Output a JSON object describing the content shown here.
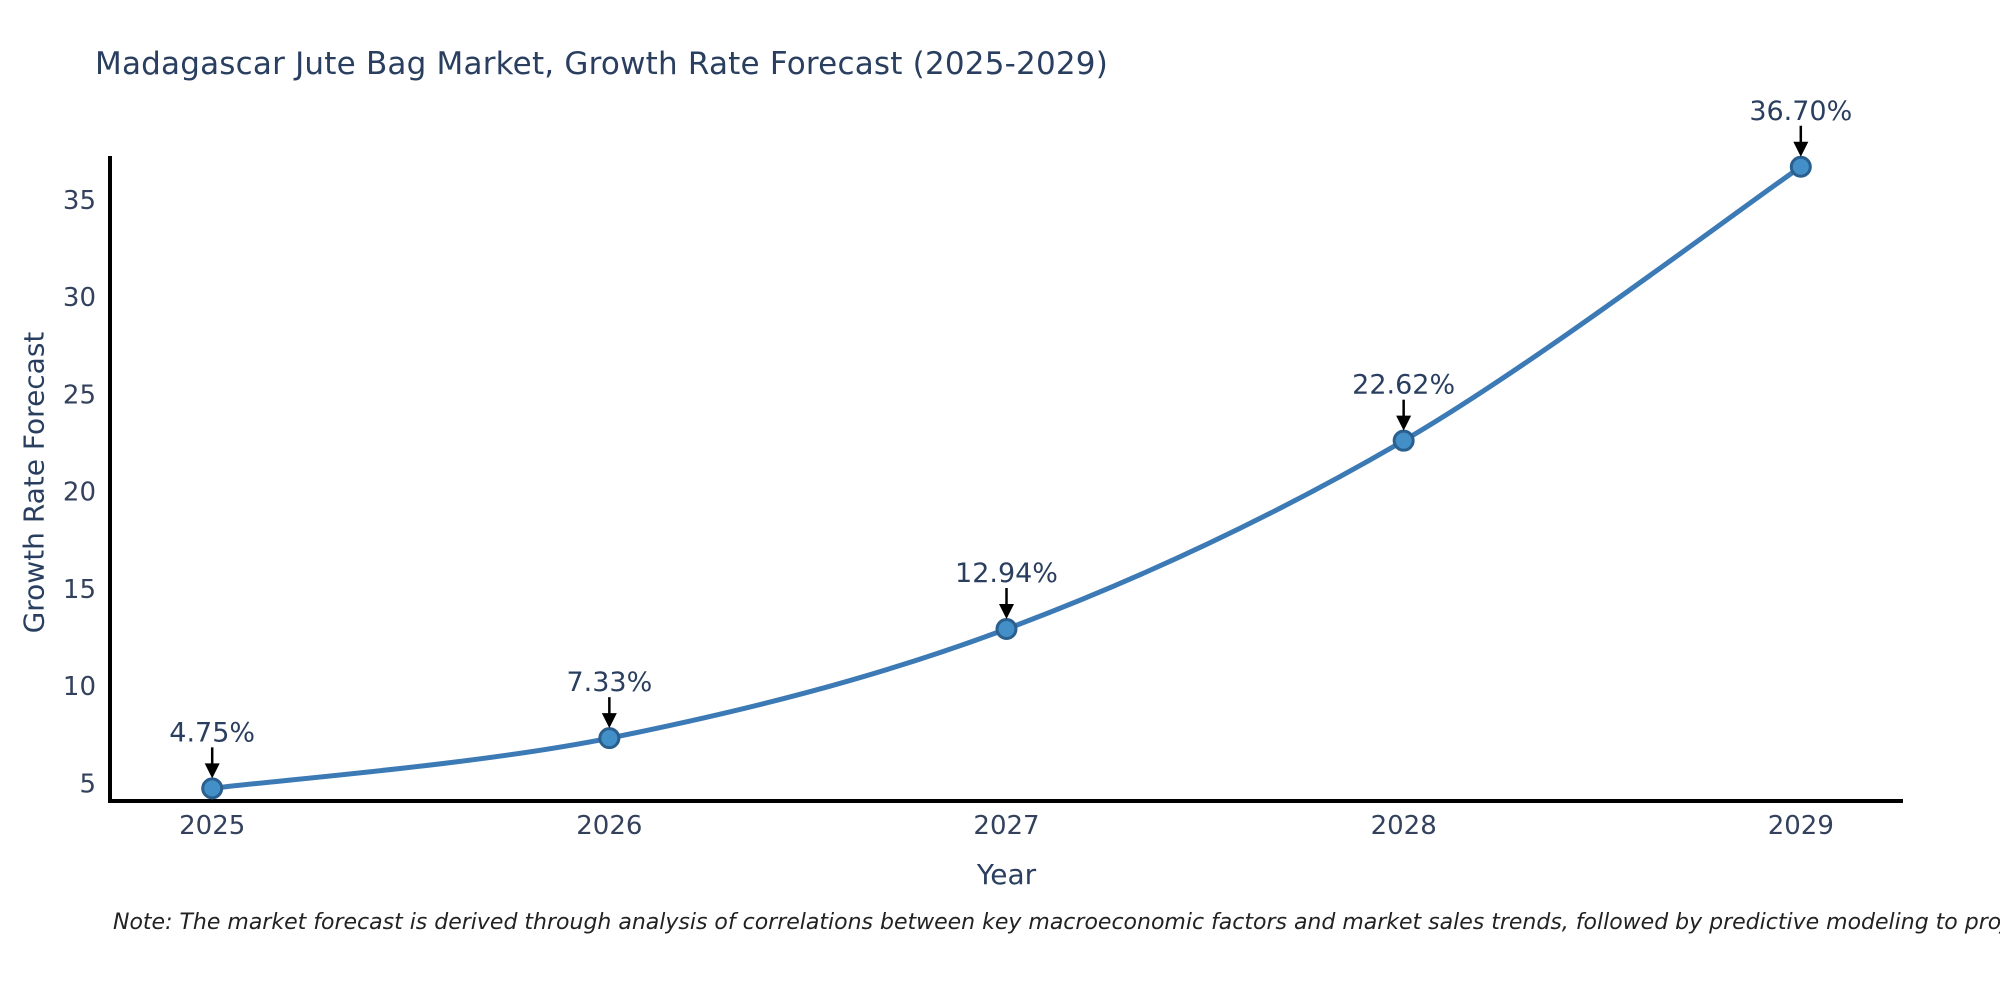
{
  "chart_data": {
    "type": "line",
    "title": "Madagascar Jute Bag Market, Growth Rate Forecast (2025-2029)",
    "xlabel": "Year",
    "ylabel": "Growth Rate Forecast",
    "x": [
      2025,
      2026,
      2027,
      2028,
      2029
    ],
    "series": [
      {
        "name": "Growth Rate Forecast",
        "values": [
          4.75,
          7.33,
          12.94,
          22.62,
          36.7
        ],
        "point_labels": [
          "4.75%",
          "7.33%",
          "12.94%",
          "22.62%",
          "36.70%"
        ]
      }
    ],
    "xticks": [
      "2025",
      "2026",
      "2027",
      "2028",
      "2029"
    ],
    "yticks": [
      5,
      10,
      15,
      20,
      25,
      30,
      35
    ],
    "ylim": [
      4.1,
      37.15
    ],
    "x_padding_frac": 0.057,
    "grid": false,
    "legend_position": "none",
    "line_shape": "spline",
    "colors": {
      "line": "#3c7ab5",
      "marker_fill": "#4390c9",
      "marker_edge": "#2a5f8e",
      "axis": "#000000",
      "tick_text": "#33415c",
      "title_text": "#2a3f5f",
      "annotation_text": "#2a3f5f",
      "arrow": "#000000"
    },
    "note": "Note: The market forecast is derived through analysis of correlations between key macroeconomic factors and market sales trends, followed by predictive modeling to project future sales"
  }
}
